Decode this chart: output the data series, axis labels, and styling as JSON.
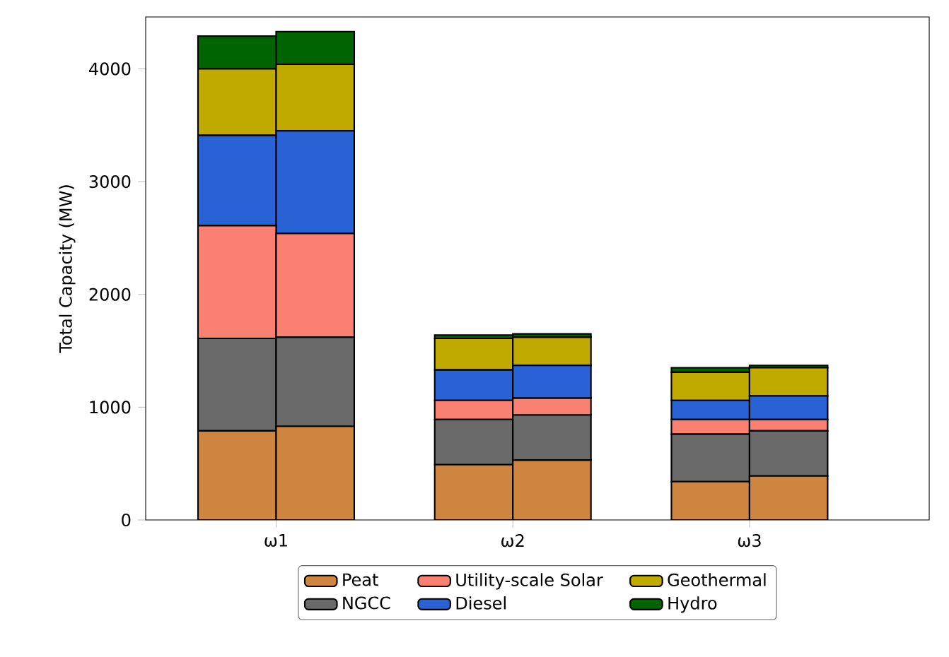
{
  "chart_data": {
    "type": "bar",
    "stacked": true,
    "ylabel": "Total Capacity (MW)",
    "categories": [
      null,
      null,
      null,
      null,
      null,
      null
    ],
    "annotations": [
      "ω1",
      "ω2",
      "ω3"
    ],
    "ylim": [
      0,
      4460
    ],
    "yticks": [
      0,
      1000,
      2000,
      3000,
      4000
    ],
    "legend": "bottom",
    "series": [
      {
        "name": "Peat",
        "color": "#cd853f",
        "values": [
          790,
          830,
          490,
          530,
          340,
          390
        ]
      },
      {
        "name": "NGCC",
        "color": "#696969",
        "values": [
          820,
          790,
          400,
          400,
          420,
          400
        ]
      },
      {
        "name": "Utility-scale Solar",
        "color": "#fa8072",
        "values": [
          1000,
          920,
          170,
          150,
          130,
          100
        ]
      },
      {
        "name": "Diesel",
        "color": "#2962d4",
        "values": [
          800,
          910,
          270,
          290,
          170,
          210
        ]
      },
      {
        "name": "Geothermal",
        "color": "#c0aa00",
        "values": [
          590,
          590,
          280,
          250,
          250,
          250
        ]
      },
      {
        "name": "Hydro",
        "color": "#006400",
        "values": [
          290,
          290,
          30,
          30,
          40,
          20
        ]
      }
    ]
  }
}
